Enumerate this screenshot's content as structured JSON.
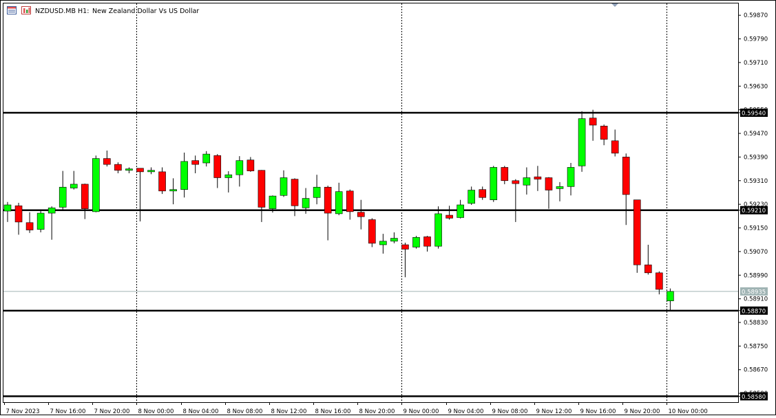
{
  "header": {
    "symbol": "NZDUSD.MB",
    "timeframe": "H1:",
    "description": "New Zealand Dollar Vs US Dollar"
  },
  "colors": {
    "bull": "#00ff00",
    "bear": "#ff0000",
    "wick": "#000000",
    "candle_border": "#000000",
    "level_line": "#000000",
    "current_line": "#a0b4b4",
    "current_label_bg": "#a0b4b4",
    "grid_sep": "#000000",
    "background": "#ffffff"
  },
  "icons": [
    "chart-window-icon",
    "symbol-properties-icon",
    "chart-shift-marker-icon"
  ],
  "chart_data": {
    "type": "candlestick",
    "ylim": [
      0.5856,
      0.5991
    ],
    "y_ticks": [
      "0.59870",
      "0.59790",
      "0.59710",
      "0.59630",
      "0.59550",
      "0.59470",
      "0.59390",
      "0.59310",
      "0.59230",
      "0.59150",
      "0.59070",
      "0.58990",
      "0.58910",
      "0.58830",
      "0.58750",
      "0.58670",
      "0.58590"
    ],
    "x_labels": [
      "7 Nov 2023",
      "7 Nov 16:00",
      "7 Nov 20:00",
      "8 Nov 00:00",
      "8 Nov 04:00",
      "8 Nov 08:00",
      "8 Nov 12:00",
      "8 Nov 16:00",
      "8 Nov 20:00",
      "9 Nov 00:00",
      "9 Nov 04:00",
      "9 Nov 08:00",
      "9 Nov 12:00",
      "9 Nov 16:00",
      "9 Nov 20:00",
      "10 Nov 00:00"
    ],
    "day_separators": [
      "8 Nov 00:00",
      "9 Nov 00:00",
      "10 Nov 00:00"
    ],
    "horizontal_levels": [
      "0.59540",
      "0.59210",
      "0.58870",
      "0.58580"
    ],
    "current_price": "0.58935",
    "candles": [
      {
        "time": "7 Nov 12:00",
        "o": 0.59207,
        "h": 0.59238,
        "l": 0.5917,
        "c": 0.59228
      },
      {
        "time": "7 Nov 13:00",
        "o": 0.59225,
        "h": 0.59235,
        "l": 0.59127,
        "c": 0.5917
      },
      {
        "time": "7 Nov 14:00",
        "o": 0.59168,
        "h": 0.59203,
        "l": 0.59133,
        "c": 0.59143
      },
      {
        "time": "7 Nov 15:00",
        "o": 0.59145,
        "h": 0.59213,
        "l": 0.59135,
        "c": 0.592
      },
      {
        "time": "7 Nov 16:00",
        "o": 0.592,
        "h": 0.59223,
        "l": 0.5911,
        "c": 0.59218
      },
      {
        "time": "7 Nov 17:00",
        "o": 0.5922,
        "h": 0.59343,
        "l": 0.59213,
        "c": 0.59288
      },
      {
        "time": "7 Nov 18:00",
        "o": 0.59285,
        "h": 0.59343,
        "l": 0.5928,
        "c": 0.59298
      },
      {
        "time": "7 Nov 19:00",
        "o": 0.59298,
        "h": 0.593,
        "l": 0.5918,
        "c": 0.59215
      },
      {
        "time": "7 Nov 20:00",
        "o": 0.59205,
        "h": 0.59395,
        "l": 0.59203,
        "c": 0.59385
      },
      {
        "time": "7 Nov 21:00",
        "o": 0.59385,
        "h": 0.59412,
        "l": 0.59358,
        "c": 0.59365
      },
      {
        "time": "7 Nov 22:00",
        "o": 0.59365,
        "h": 0.59372,
        "l": 0.59335,
        "c": 0.59345
      },
      {
        "time": "7 Nov 23:00",
        "o": 0.59345,
        "h": 0.59355,
        "l": 0.59335,
        "c": 0.5935
      },
      {
        "time": "8 Nov 00:00",
        "o": 0.59352,
        "h": 0.59352,
        "l": 0.59172,
        "c": 0.5934
      },
      {
        "time": "8 Nov 01:00",
        "o": 0.5934,
        "h": 0.59355,
        "l": 0.59332,
        "c": 0.59345
      },
      {
        "time": "8 Nov 02:00",
        "o": 0.5934,
        "h": 0.59355,
        "l": 0.59265,
        "c": 0.59275
      },
      {
        "time": "8 Nov 03:00",
        "o": 0.59275,
        "h": 0.59318,
        "l": 0.5923,
        "c": 0.5928
      },
      {
        "time": "8 Nov 04:00",
        "o": 0.5928,
        "h": 0.59405,
        "l": 0.59253,
        "c": 0.59375
      },
      {
        "time": "8 Nov 05:00",
        "o": 0.59378,
        "h": 0.59395,
        "l": 0.59335,
        "c": 0.59365
      },
      {
        "time": "8 Nov 06:00",
        "o": 0.5937,
        "h": 0.5941,
        "l": 0.59358,
        "c": 0.594
      },
      {
        "time": "8 Nov 07:00",
        "o": 0.59395,
        "h": 0.594,
        "l": 0.59285,
        "c": 0.5932
      },
      {
        "time": "8 Nov 08:00",
        "o": 0.5932,
        "h": 0.59342,
        "l": 0.5927,
        "c": 0.5933
      },
      {
        "time": "8 Nov 09:00",
        "o": 0.5933,
        "h": 0.59393,
        "l": 0.5929,
        "c": 0.59378
      },
      {
        "time": "8 Nov 10:00",
        "o": 0.5938,
        "h": 0.5939,
        "l": 0.5934,
        "c": 0.59343
      },
      {
        "time": "8 Nov 11:00",
        "o": 0.59345,
        "h": 0.59346,
        "l": 0.5917,
        "c": 0.5922
      },
      {
        "time": "8 Nov 12:00",
        "o": 0.59215,
        "h": 0.5926,
        "l": 0.59202,
        "c": 0.59258
      },
      {
        "time": "8 Nov 13:00",
        "o": 0.5926,
        "h": 0.59345,
        "l": 0.59255,
        "c": 0.5932
      },
      {
        "time": "8 Nov 14:00",
        "o": 0.59315,
        "h": 0.59318,
        "l": 0.5919,
        "c": 0.59225
      },
      {
        "time": "8 Nov 15:00",
        "o": 0.59218,
        "h": 0.59285,
        "l": 0.59198,
        "c": 0.5925
      },
      {
        "time": "8 Nov 16:00",
        "o": 0.59253,
        "h": 0.5933,
        "l": 0.5923,
        "c": 0.59288
      },
      {
        "time": "8 Nov 17:00",
        "o": 0.59288,
        "h": 0.59293,
        "l": 0.59108,
        "c": 0.592
      },
      {
        "time": "8 Nov 18:00",
        "o": 0.59198,
        "h": 0.59303,
        "l": 0.59193,
        "c": 0.59273
      },
      {
        "time": "8 Nov 19:00",
        "o": 0.59275,
        "h": 0.5928,
        "l": 0.59178,
        "c": 0.59205
      },
      {
        "time": "8 Nov 20:00",
        "o": 0.59203,
        "h": 0.59245,
        "l": 0.59145,
        "c": 0.59188
      },
      {
        "time": "8 Nov 21:00",
        "o": 0.59178,
        "h": 0.59183,
        "l": 0.59085,
        "c": 0.59098
      },
      {
        "time": "8 Nov 22:00",
        "o": 0.59093,
        "h": 0.5913,
        "l": 0.59063,
        "c": 0.59105
      },
      {
        "time": "8 Nov 23:00",
        "o": 0.59105,
        "h": 0.59135,
        "l": 0.59098,
        "c": 0.59115
      },
      {
        "time": "9 Nov 00:00",
        "o": 0.59093,
        "h": 0.591,
        "l": 0.58983,
        "c": 0.59078
      },
      {
        "time": "9 Nov 01:00",
        "o": 0.59085,
        "h": 0.59123,
        "l": 0.5908,
        "c": 0.59118
      },
      {
        "time": "9 Nov 02:00",
        "o": 0.5912,
        "h": 0.59123,
        "l": 0.5907,
        "c": 0.59088
      },
      {
        "time": "9 Nov 03:00",
        "o": 0.59088,
        "h": 0.59223,
        "l": 0.5908,
        "c": 0.59198
      },
      {
        "time": "9 Nov 04:00",
        "o": 0.59193,
        "h": 0.59225,
        "l": 0.59178,
        "c": 0.59183
      },
      {
        "time": "9 Nov 05:00",
        "o": 0.59185,
        "h": 0.59245,
        "l": 0.59182,
        "c": 0.59228
      },
      {
        "time": "9 Nov 06:00",
        "o": 0.59233,
        "h": 0.5929,
        "l": 0.59228,
        "c": 0.59278
      },
      {
        "time": "9 Nov 07:00",
        "o": 0.5928,
        "h": 0.5929,
        "l": 0.59245,
        "c": 0.59253
      },
      {
        "time": "9 Nov 08:00",
        "o": 0.59245,
        "h": 0.5936,
        "l": 0.59238,
        "c": 0.59355
      },
      {
        "time": "9 Nov 09:00",
        "o": 0.59355,
        "h": 0.5936,
        "l": 0.59298,
        "c": 0.5931
      },
      {
        "time": "9 Nov 10:00",
        "o": 0.5931,
        "h": 0.59315,
        "l": 0.5917,
        "c": 0.593
      },
      {
        "time": "9 Nov 11:00",
        "o": 0.59295,
        "h": 0.59355,
        "l": 0.59263,
        "c": 0.5932
      },
      {
        "time": "9 Nov 12:00",
        "o": 0.59323,
        "h": 0.5936,
        "l": 0.59275,
        "c": 0.59315
      },
      {
        "time": "9 Nov 13:00",
        "o": 0.5932,
        "h": 0.59322,
        "l": 0.59215,
        "c": 0.59278
      },
      {
        "time": "9 Nov 14:00",
        "o": 0.59283,
        "h": 0.59305,
        "l": 0.5924,
        "c": 0.5929
      },
      {
        "time": "9 Nov 15:00",
        "o": 0.5929,
        "h": 0.5937,
        "l": 0.5926,
        "c": 0.59355
      },
      {
        "time": "9 Nov 16:00",
        "o": 0.5936,
        "h": 0.59545,
        "l": 0.5934,
        "c": 0.5952
      },
      {
        "time": "9 Nov 17:00",
        "o": 0.59522,
        "h": 0.5955,
        "l": 0.59445,
        "c": 0.59498
      },
      {
        "time": "9 Nov 18:00",
        "o": 0.59495,
        "h": 0.595,
        "l": 0.5943,
        "c": 0.5945
      },
      {
        "time": "9 Nov 19:00",
        "o": 0.59445,
        "h": 0.59483,
        "l": 0.59392,
        "c": 0.59403
      },
      {
        "time": "9 Nov 20:00",
        "o": 0.5939,
        "h": 0.59402,
        "l": 0.5916,
        "c": 0.59263
      },
      {
        "time": "9 Nov 21:00",
        "o": 0.59245,
        "h": 0.59245,
        "l": 0.58998,
        "c": 0.59025
      },
      {
        "time": "9 Nov 22:00",
        "o": 0.59025,
        "h": 0.59093,
        "l": 0.58992,
        "c": 0.58998
      },
      {
        "time": "9 Nov 23:00",
        "o": 0.58998,
        "h": 0.59003,
        "l": 0.58925,
        "c": 0.58942
      },
      {
        "time": "10 Nov 00:00",
        "o": 0.58903,
        "h": 0.58945,
        "l": 0.5887,
        "c": 0.58935
      }
    ]
  }
}
